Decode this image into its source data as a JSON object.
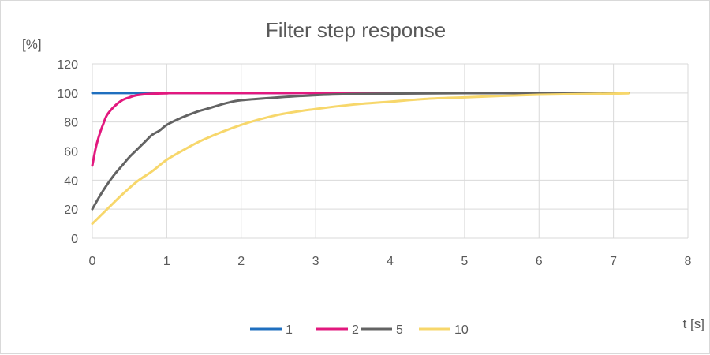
{
  "chart_data": {
    "type": "line",
    "title": "Filter step response",
    "ylabel": "[%]",
    "xlabel": "t [s]",
    "xlim": [
      0,
      8
    ],
    "ylim": [
      0,
      120
    ],
    "x_ticks": [
      "0",
      "1",
      "2",
      "3",
      "4",
      "5",
      "6",
      "7",
      "8"
    ],
    "y_ticks": [
      "0",
      "20",
      "40",
      "60",
      "80",
      "100",
      "120"
    ],
    "grid": true,
    "legend_position": "bottom",
    "series": [
      {
        "name": "1",
        "color": "#1f6fbf",
        "points": [
          [
            0,
            100
          ],
          [
            7.2,
            100
          ]
        ]
      },
      {
        "name": "2",
        "color": "#e2187e",
        "points": [
          [
            0,
            50
          ],
          [
            0.05,
            63
          ],
          [
            0.1,
            72
          ],
          [
            0.15,
            79
          ],
          [
            0.2,
            85
          ],
          [
            0.3,
            91
          ],
          [
            0.4,
            95
          ],
          [
            0.5,
            97
          ],
          [
            0.6,
            98.5
          ],
          [
            0.8,
            99.5
          ],
          [
            1,
            99.8
          ],
          [
            1.5,
            100
          ],
          [
            7.2,
            100
          ]
        ]
      },
      {
        "name": "5",
        "color": "#636363",
        "points": [
          [
            0,
            20
          ],
          [
            0.1,
            29
          ],
          [
            0.2,
            37
          ],
          [
            0.3,
            44
          ],
          [
            0.4,
            50
          ],
          [
            0.5,
            56
          ],
          [
            0.6,
            61
          ],
          [
            0.7,
            66
          ],
          [
            0.8,
            71
          ],
          [
            0.9,
            74
          ],
          [
            1,
            78
          ],
          [
            1.2,
            83
          ],
          [
            1.4,
            87
          ],
          [
            1.6,
            90
          ],
          [
            1.8,
            93
          ],
          [
            2,
            95
          ],
          [
            2.5,
            97
          ],
          [
            3,
            98.5
          ],
          [
            3.5,
            99.3
          ],
          [
            4,
            99.6
          ],
          [
            5,
            99.9
          ],
          [
            7.2,
            100
          ]
        ]
      },
      {
        "name": "10",
        "color": "#f7d76b",
        "points": [
          [
            0,
            10
          ],
          [
            0.2,
            20
          ],
          [
            0.4,
            30
          ],
          [
            0.6,
            39
          ],
          [
            0.8,
            46
          ],
          [
            1,
            54
          ],
          [
            1.2,
            60
          ],
          [
            1.5,
            68
          ],
          [
            2,
            78
          ],
          [
            2.5,
            85
          ],
          [
            3,
            89
          ],
          [
            3.5,
            92
          ],
          [
            4,
            94
          ],
          [
            4.5,
            96
          ],
          [
            5,
            97
          ],
          [
            5.5,
            98
          ],
          [
            6,
            98.8
          ],
          [
            6.5,
            99.2
          ],
          [
            7,
            99.6
          ],
          [
            7.2,
            99.8
          ]
        ]
      }
    ]
  }
}
